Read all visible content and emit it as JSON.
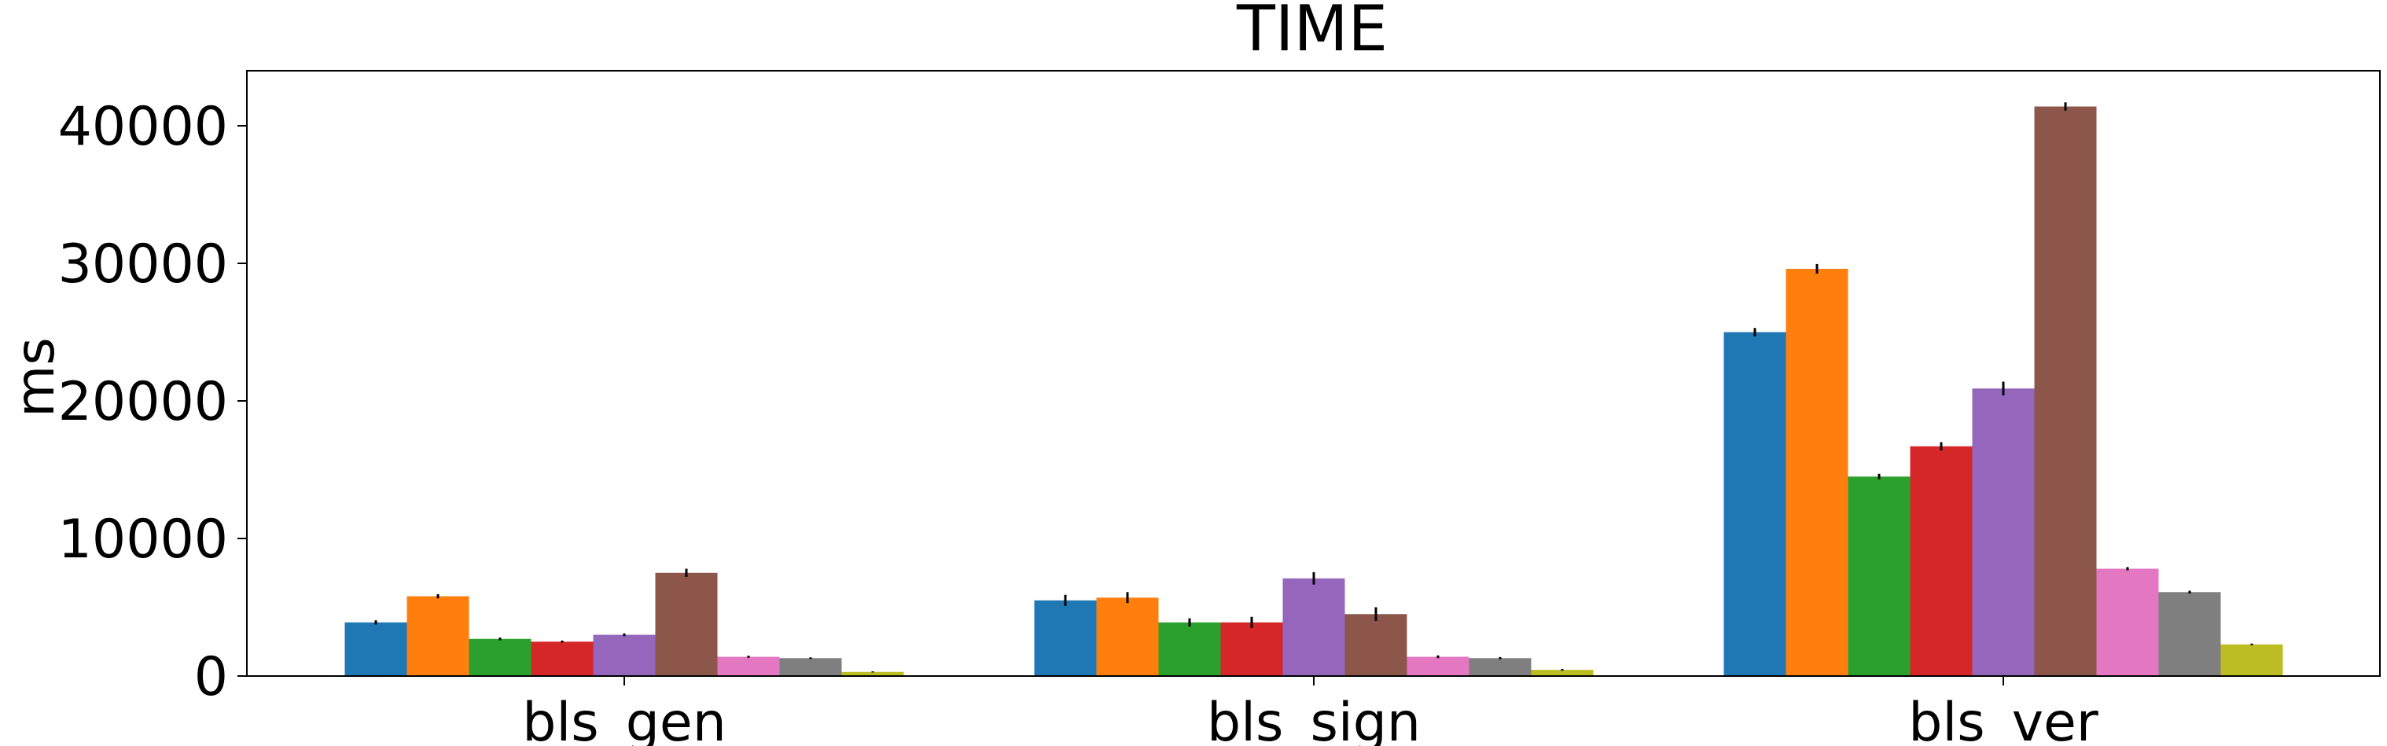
{
  "chart_data": {
    "type": "bar",
    "title": "TIME",
    "xlabel": "",
    "ylabel": "ms",
    "categories": [
      "bls_gen",
      "bls_sign",
      "bls_ver"
    ],
    "ylim": [
      0,
      44000
    ],
    "yticks": [
      0,
      10000,
      20000,
      30000,
      40000
    ],
    "ytick_labels": [
      "0",
      "10000",
      "20000",
      "30000",
      "40000"
    ],
    "grid": false,
    "legend": "none",
    "series": [
      {
        "color": "#1f77b4",
        "values": [
          3900,
          5500,
          25000
        ],
        "errors": [
          150,
          400,
          300
        ]
      },
      {
        "color": "#ff7f0e",
        "values": [
          5800,
          5700,
          29600
        ],
        "errors": [
          150,
          400,
          350
        ]
      },
      {
        "color": "#2ca02c",
        "values": [
          2700,
          3900,
          14500
        ],
        "errors": [
          100,
          300,
          200
        ]
      },
      {
        "color": "#d62728",
        "values": [
          2500,
          3900,
          16700
        ],
        "errors": [
          80,
          400,
          300
        ]
      },
      {
        "color": "#9467bd",
        "values": [
          3000,
          7100,
          20900
        ],
        "errors": [
          100,
          450,
          500
        ]
      },
      {
        "color": "#8c564b",
        "values": [
          7500,
          4500,
          41400
        ],
        "errors": [
          300,
          500,
          300
        ]
      },
      {
        "color": "#e377c2",
        "values": [
          1400,
          1400,
          7800
        ],
        "errors": [
          80,
          100,
          120
        ]
      },
      {
        "color": "#7f7f7f",
        "values": [
          1300,
          1300,
          6100
        ],
        "errors": [
          60,
          80,
          100
        ]
      },
      {
        "color": "#bcbd22",
        "values": [
          300,
          450,
          2300
        ],
        "errors": [
          40,
          60,
          60
        ]
      }
    ]
  }
}
